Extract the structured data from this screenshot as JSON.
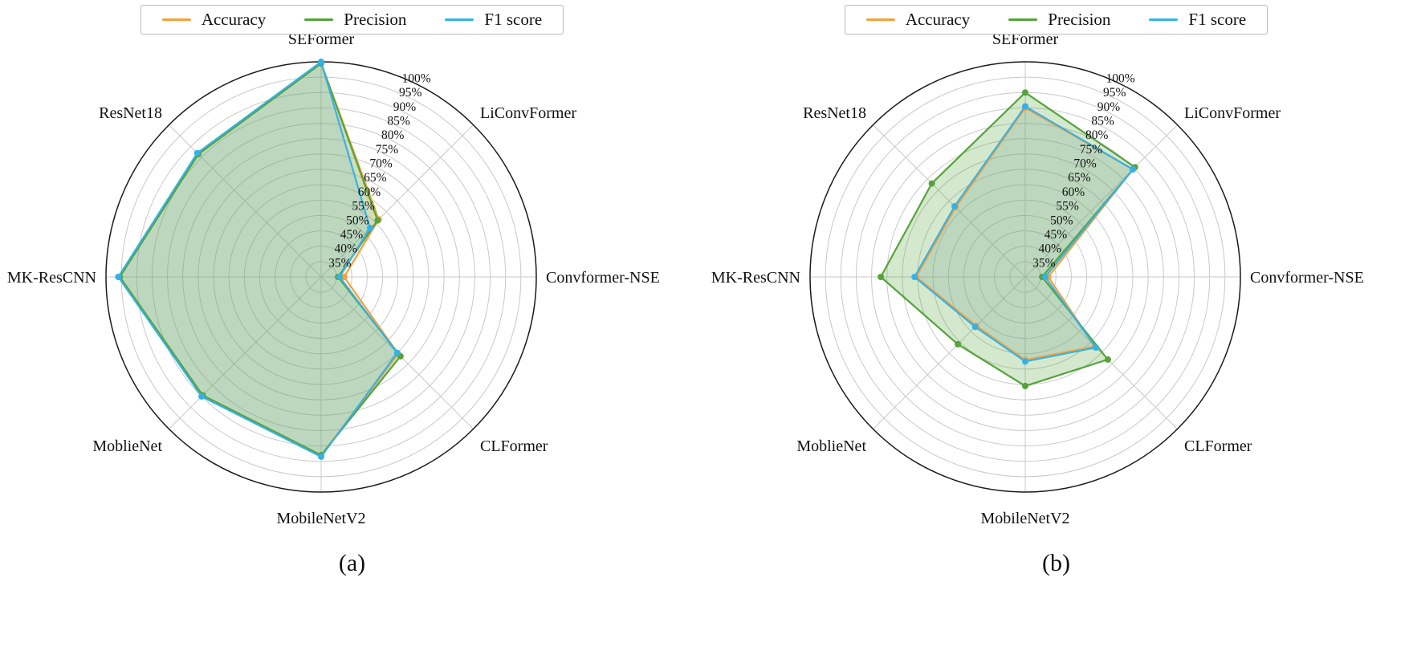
{
  "figure": {
    "captions": [
      "(a)",
      "(b)"
    ]
  },
  "legend": {
    "items": [
      {
        "label": "Accuracy",
        "color": "#F6A13B"
      },
      {
        "label": "Precision",
        "color": "#55A33A"
      },
      {
        "label": "F1 score",
        "color": "#35B2E5"
      }
    ]
  },
  "chart_data": [
    {
      "type": "radar",
      "panel": "(a)",
      "title": "",
      "categories": [
        "SEFormer",
        "LiConvFormer",
        "Convformer-NSE",
        "CLFormer",
        "MobileNetV2",
        "MoblieNet",
        "MK-ResCNN",
        "ResNet18"
      ],
      "series": [
        {
          "name": "Accuracy",
          "color": "#F6A13B",
          "fill": "rgba(246,161,59,0.14)",
          "values": [
            99.5,
            56.5,
            37.5,
            65.5,
            88.0,
            84.5,
            95.5,
            86.5
          ]
        },
        {
          "name": "Precision",
          "color": "#55A33A",
          "fill": "rgba(85,163,58,0.25)",
          "values": [
            99.5,
            56.0,
            35.5,
            66.5,
            88.0,
            84.5,
            95.5,
            86.5
          ]
        },
        {
          "name": "F1 score",
          "color": "#35B2E5",
          "fill": "rgba(53,178,229,0.14)",
          "values": [
            100.0,
            52.5,
            36.0,
            65.0,
            88.5,
            85.0,
            96.0,
            87.0
          ]
        }
      ],
      "rmin": 30,
      "rmax": 100,
      "ticks": [
        35,
        40,
        45,
        50,
        55,
        60,
        65,
        70,
        75,
        80,
        85,
        90,
        95,
        100
      ],
      "tick_labels": [
        "35%",
        "40%",
        "45%",
        "50%",
        "55%",
        "60%",
        "65%",
        "70%",
        "75%",
        "80%",
        "85%",
        "90%",
        "95%",
        "100%"
      ],
      "tick_angle_deg": 67.5,
      "grid": true,
      "legend_position": "top"
    },
    {
      "type": "radar",
      "panel": "(b)",
      "title": "",
      "categories": [
        "SEFormer",
        "LiConvFormer",
        "Convformer-NSE",
        "CLFormer",
        "MobileNetV2",
        "MoblieNet",
        "MK-ResCNN",
        "ResNet18"
      ],
      "series": [
        {
          "name": "Accuracy",
          "color": "#F6A13B",
          "fill": "rgba(246,161,59,0.14)",
          "values": [
            85.0,
            79.5,
            37.5,
            62.0,
            57.0,
            52.5,
            65.5,
            62.0
          ]
        },
        {
          "name": "Precision",
          "color": "#55A33A",
          "fill": "rgba(85,163,58,0.25)",
          "values": [
            90.0,
            80.5,
            35.5,
            68.0,
            65.5,
            61.0,
            77.0,
            73.0
          ]
        },
        {
          "name": "F1 score",
          "color": "#35B2E5",
          "fill": "rgba(53,178,229,0.14)",
          "values": [
            85.5,
            79.5,
            36.5,
            62.5,
            57.5,
            53.0,
            66.0,
            62.5
          ]
        }
      ],
      "rmin": 30,
      "rmax": 100,
      "ticks": [
        35,
        40,
        45,
        50,
        55,
        60,
        65,
        70,
        75,
        80,
        85,
        90,
        95,
        100
      ],
      "tick_labels": [
        "35%",
        "40%",
        "45%",
        "50%",
        "55%",
        "60%",
        "65%",
        "70%",
        "75%",
        "80%",
        "85%",
        "90%",
        "95%",
        "100%"
      ],
      "tick_angle_deg": 67.5,
      "grid": true,
      "legend_position": "top"
    }
  ]
}
